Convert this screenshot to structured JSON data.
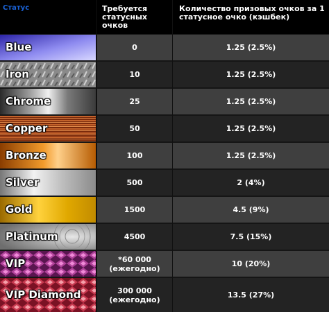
{
  "header": {
    "status": "Статус",
    "required": "Требуется статусных очков",
    "rate": "Количество призовых очков за 1 статусное очко (кэшбек)"
  },
  "rows": [
    {
      "status": "Blue",
      "required": "0",
      "required_note": "",
      "rate": "1.25 (2.5%)"
    },
    {
      "status": "Iron",
      "required": "10",
      "required_note": "",
      "rate": "1.25 (2.5%)"
    },
    {
      "status": "Chrome",
      "required": "25",
      "required_note": "",
      "rate": "1.25 (2.5%)"
    },
    {
      "status": "Copper",
      "required": "50",
      "required_note": "",
      "rate": "1.25 (2.5%)"
    },
    {
      "status": "Bronze",
      "required": "100",
      "required_note": "",
      "rate": "1.25 (2.5%)"
    },
    {
      "status": "Silver",
      "required": "500",
      "required_note": "",
      "rate": "2 (4%)"
    },
    {
      "status": "Gold",
      "required": "1500",
      "required_note": "",
      "rate": "4.5 (9%)"
    },
    {
      "status": "Platinum",
      "required": "4500",
      "required_note": "",
      "rate": "7.5 (15%)"
    },
    {
      "status": "VIP",
      "required": "*60 000",
      "required_note": "(ежегодно)",
      "rate": "10 (20%)"
    },
    {
      "status": "VIP Diamond",
      "required": "300 000",
      "required_note": "(ежегодно)",
      "rate": "13.5 (27%)"
    }
  ],
  "badge_colors": {
    "blue": [
      "#2d25a8",
      "#8f8cf0",
      "#5a50d8"
    ],
    "iron": [
      "#6e6e6e",
      "#a9a9a9",
      "#5c5c5c"
    ],
    "chrome": [
      "#2a2a2a",
      "#e6e6e6",
      "#3a3a3a"
    ],
    "copper": [
      "#5a1a05",
      "#c4622b",
      "#7a2a0c"
    ],
    "bronze": [
      "#8a3d00",
      "#f29b2c",
      "#b55a00"
    ],
    "silver": [
      "#777777",
      "#f2f2f2",
      "#8a8a8a"
    ],
    "gold": [
      "#9a6a00",
      "#ffd23d",
      "#c18b00"
    ],
    "platinum": [
      "#6e6e6e",
      "#cfcfcf",
      "#808080"
    ],
    "vip": [
      "#4a0d3e",
      "#d65fbf",
      "#8a2470"
    ],
    "vip_diamond": [
      "#6a0f1f",
      "#f07a86",
      "#a31d33"
    ]
  }
}
